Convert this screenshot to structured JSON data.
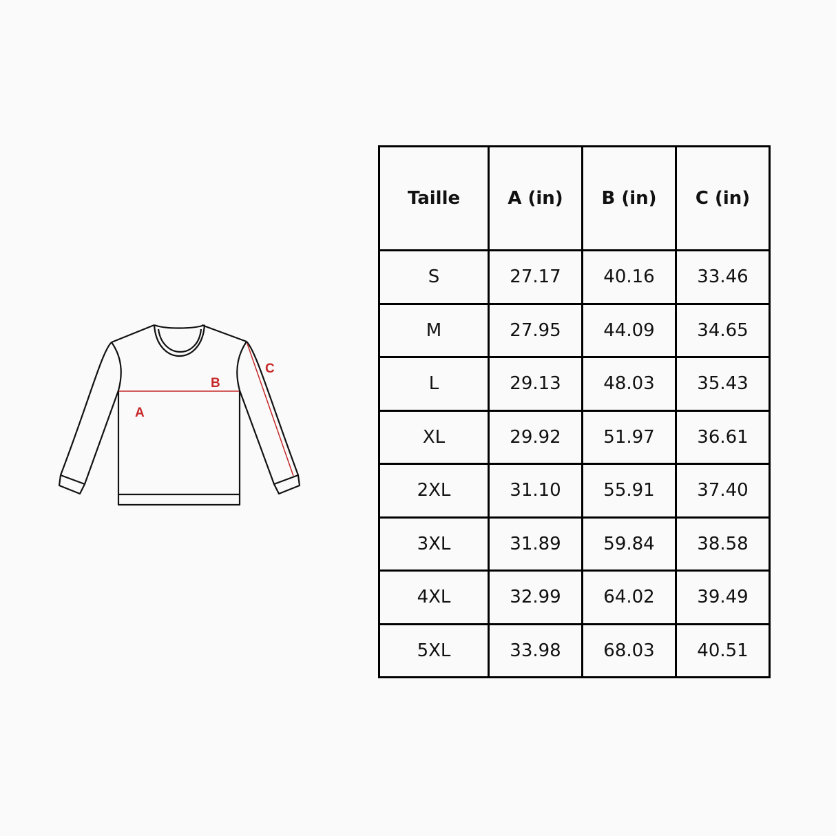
{
  "diagram": {
    "labels": {
      "a": "A",
      "b": "B",
      "c": "C"
    },
    "measure_color": "#c62828",
    "outline_color": "#111111"
  },
  "table": {
    "headers": [
      "Taille",
      "A (in)",
      "B (in)",
      "C (in)"
    ],
    "rows": [
      [
        "S",
        "27.17",
        "40.16",
        "33.46"
      ],
      [
        "M",
        "27.95",
        "44.09",
        "34.65"
      ],
      [
        "L",
        "29.13",
        "48.03",
        "35.43"
      ],
      [
        "XL",
        "29.92",
        "51.97",
        "36.61"
      ],
      [
        "2XL",
        "31.10",
        "55.91",
        "37.40"
      ],
      [
        "3XL",
        "31.89",
        "59.84",
        "38.58"
      ],
      [
        "4XL",
        "32.99",
        "64.02",
        "39.49"
      ],
      [
        "5XL",
        "33.98",
        "68.03",
        "40.51"
      ]
    ]
  }
}
